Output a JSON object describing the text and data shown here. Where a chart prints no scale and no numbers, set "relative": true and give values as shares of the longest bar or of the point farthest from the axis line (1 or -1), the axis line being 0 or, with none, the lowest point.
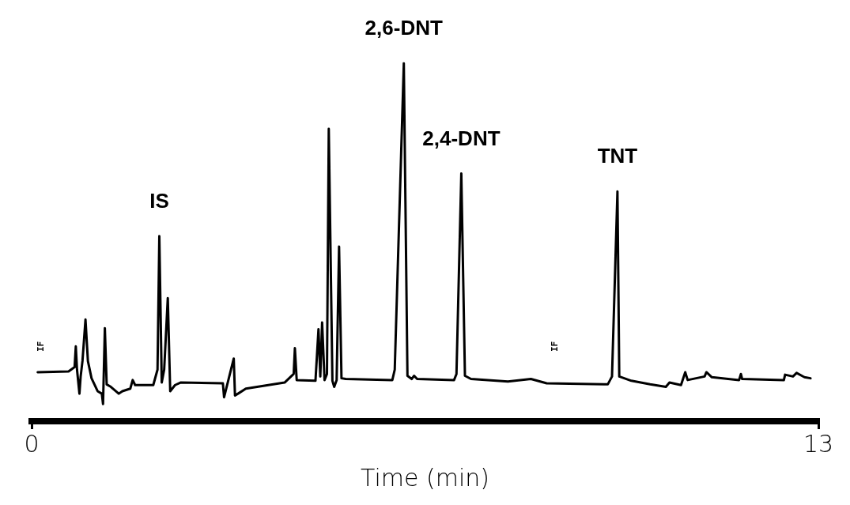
{
  "chart_data": {
    "type": "line",
    "relative": true,
    "xlabel": "Time (min)",
    "xlim": [
      0,
      13
    ],
    "xticks": [
      0,
      13
    ],
    "grid": false,
    "legend": false,
    "marker": "none",
    "line_style": "solid",
    "series": [
      {
        "color": "#000000",
        "x": [
          0.1,
          0.61,
          0.71,
          0.73,
          0.75,
          0.79,
          0.81,
          0.84,
          0.89,
          0.93,
          0.99,
          1.09,
          1.16,
          1.18,
          1.21,
          1.24,
          1.31,
          1.44,
          1.5,
          1.63,
          1.67,
          1.71,
          2.01,
          2.08,
          2.11,
          2.15,
          2.19,
          2.25,
          2.29,
          2.37,
          2.46,
          3.16,
          3.18,
          3.34,
          3.36,
          3.41,
          3.54,
          4.18,
          4.33,
          4.35,
          4.38,
          4.69,
          4.74,
          4.77,
          4.8,
          4.84,
          4.88,
          4.91,
          4.97,
          5.0,
          5.04,
          5.08,
          5.12,
          5.19,
          5.96,
          6.0,
          6.15,
          6.21,
          6.28,
          6.32,
          6.37,
          6.98,
          7.02,
          7.1,
          7.16,
          7.26,
          7.87,
          8.25,
          8.51,
          9.52,
          9.59,
          9.68,
          9.71,
          9.91,
          10.22,
          10.48,
          10.54,
          10.73,
          10.8,
          10.84,
          11.12,
          11.15,
          11.24,
          11.69,
          11.72,
          11.74,
          12.43,
          12.45,
          12.58,
          12.64,
          12.77,
          12.87
        ],
        "values": [
          0.137,
          0.139,
          0.151,
          0.209,
          0.144,
          0.077,
          0.125,
          0.168,
          0.284,
          0.168,
          0.12,
          0.084,
          0.077,
          0.048,
          0.26,
          0.103,
          0.096,
          0.077,
          0.084,
          0.091,
          0.115,
          0.101,
          0.101,
          0.144,
          0.517,
          0.108,
          0.144,
          0.344,
          0.084,
          0.101,
          0.108,
          0.106,
          0.067,
          0.175,
          0.072,
          0.077,
          0.091,
          0.108,
          0.132,
          0.204,
          0.115,
          0.113,
          0.257,
          0.125,
          0.276,
          0.115,
          0.132,
          0.817,
          0.113,
          0.096,
          0.115,
          0.488,
          0.12,
          0.118,
          0.115,
          0.144,
          1,
          0.127,
          0.118,
          0.127,
          0.118,
          0.115,
          0.132,
          0.692,
          0.127,
          0.118,
          0.111,
          0.118,
          0.106,
          0.103,
          0.125,
          0.642,
          0.125,
          0.113,
          0.103,
          0.096,
          0.108,
          0.101,
          0.137,
          0.115,
          0.125,
          0.137,
          0.123,
          0.115,
          0.132,
          0.118,
          0.115,
          0.13,
          0.125,
          0.135,
          0.123,
          0.12
        ]
      }
    ],
    "annotations": [
      {
        "text": "IS",
        "x": 2.11,
        "y": 0.517
      },
      {
        "text": "2,6-DNT",
        "x": 6.15,
        "y": 1
      },
      {
        "text": "2,4-DNT",
        "x": 7.1,
        "y": 0.692
      },
      {
        "text": "TNT",
        "x": 9.68,
        "y": 0.642
      },
      "IF",
      "IF"
    ]
  }
}
